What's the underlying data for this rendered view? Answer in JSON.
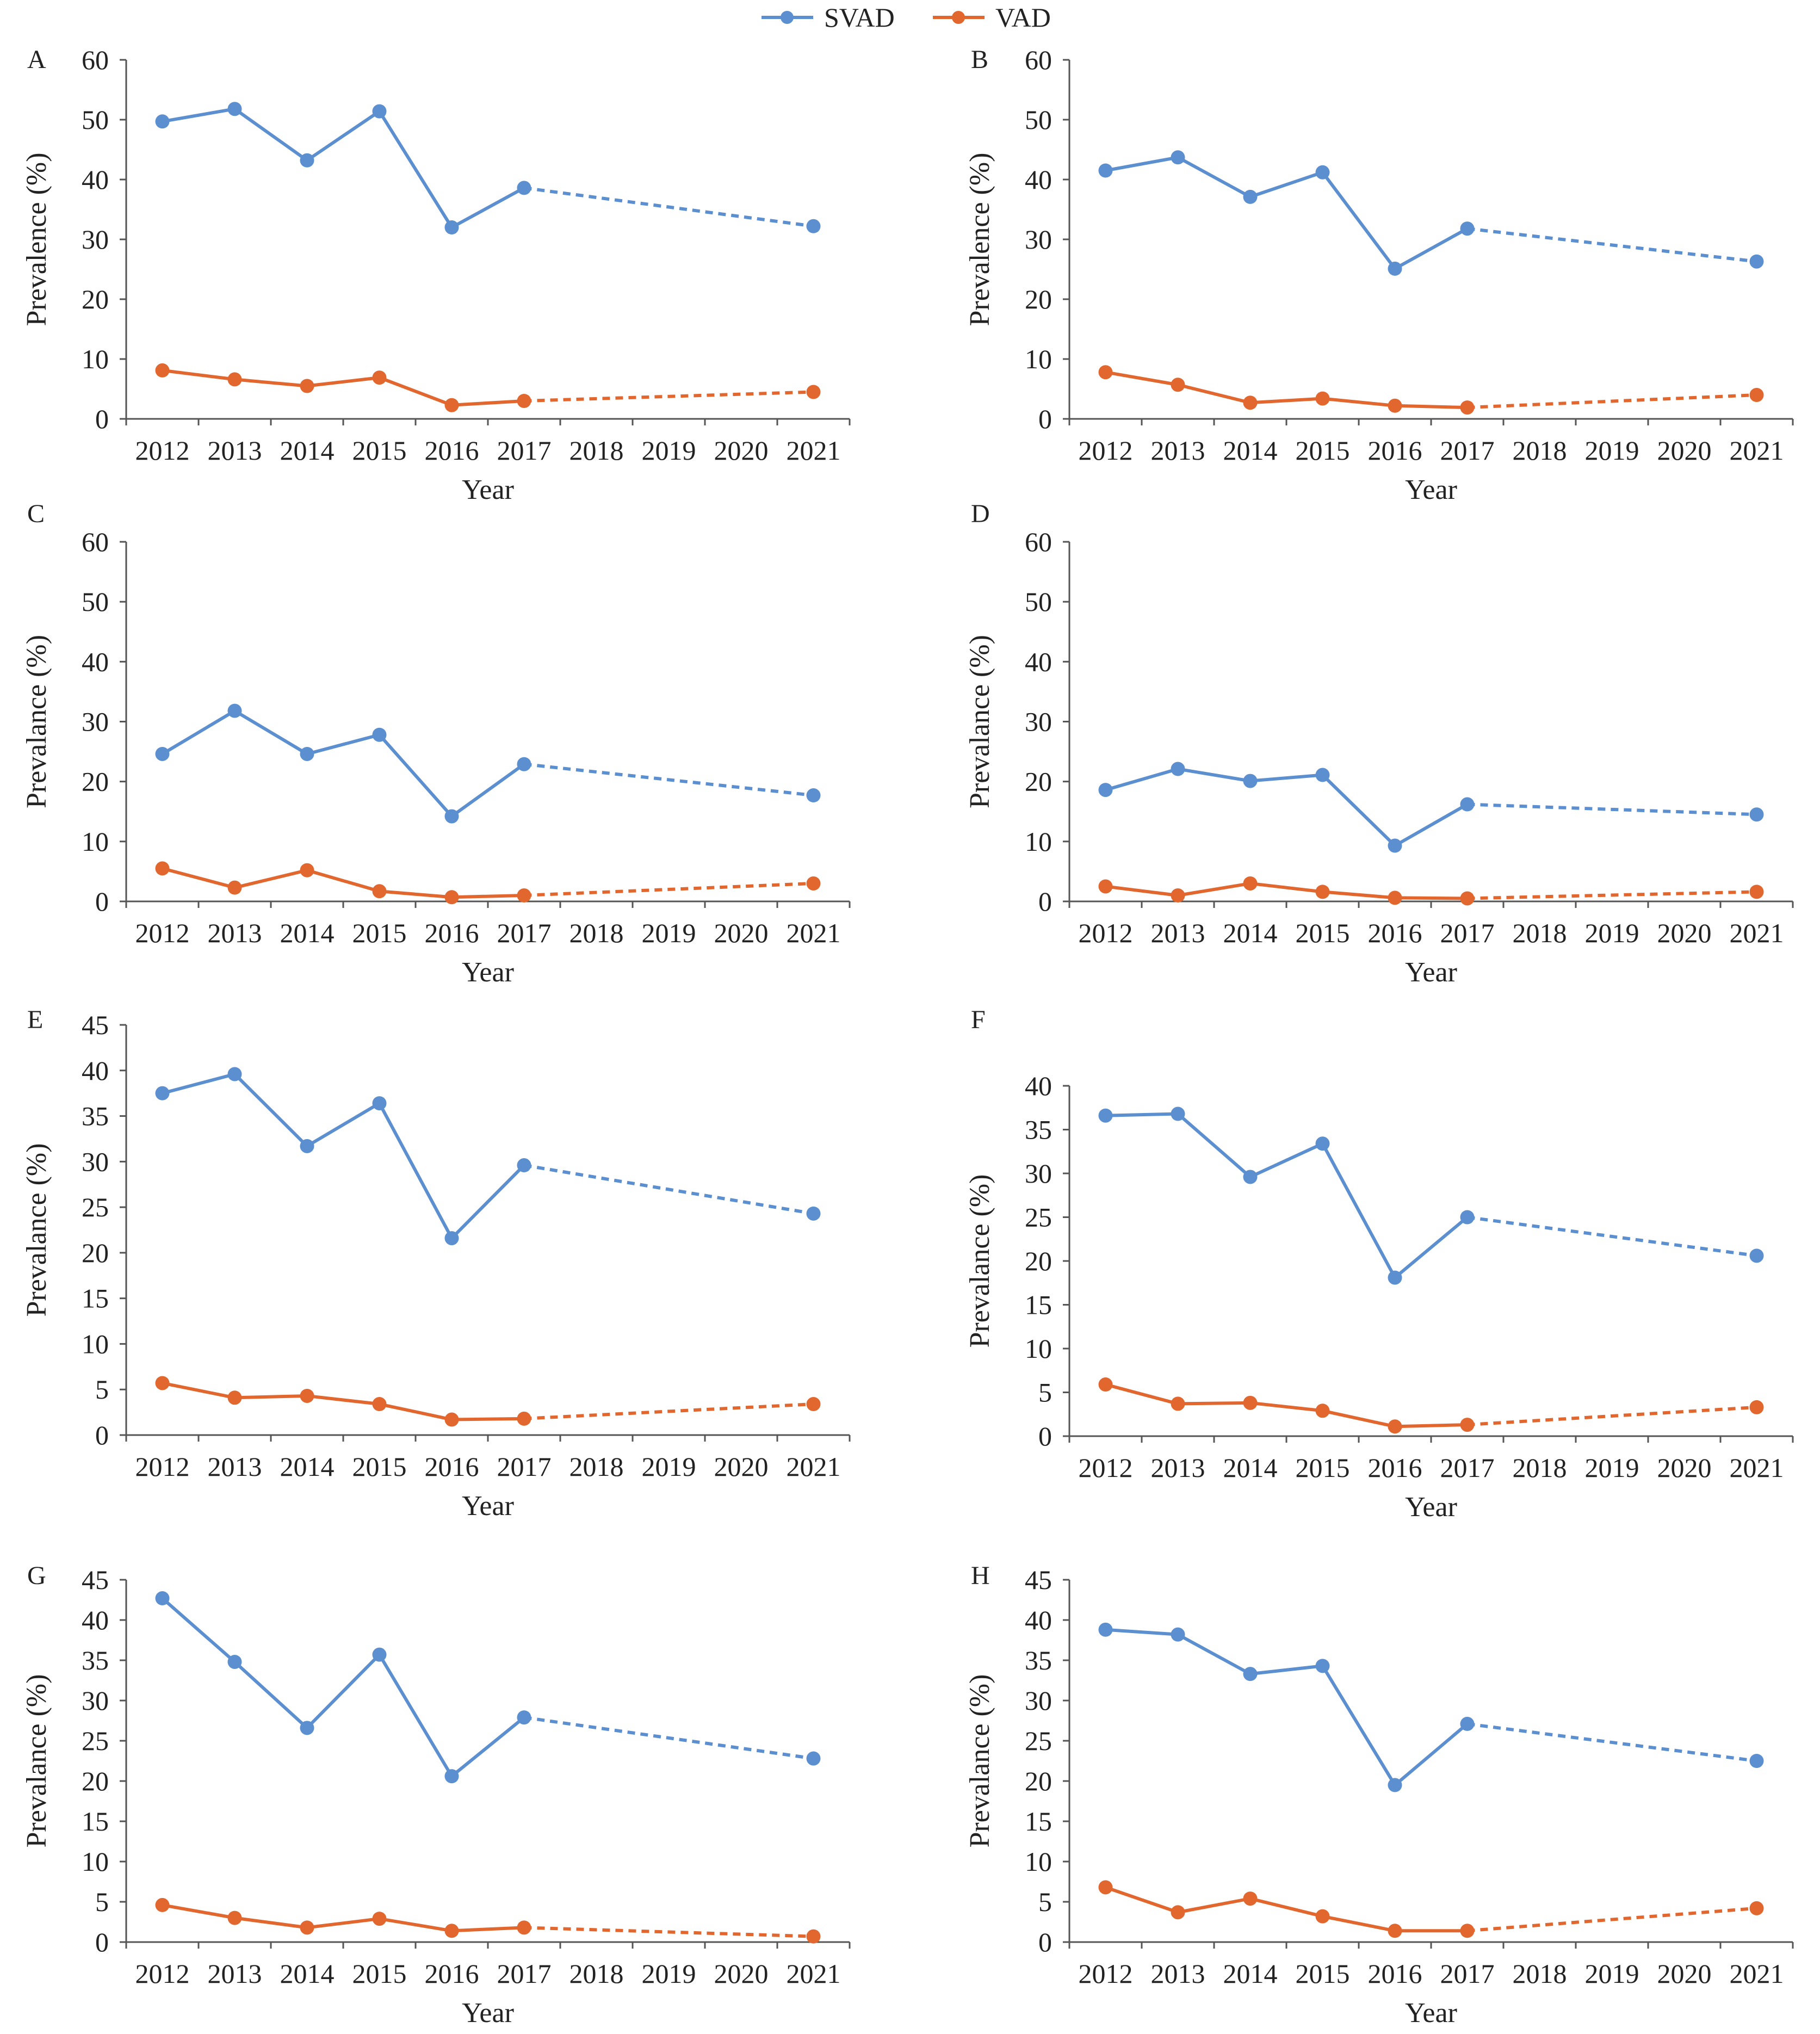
{
  "colors": {
    "SVAD": "#5b8fd0",
    "VAD": "#e2672f"
  },
  "legend": [
    {
      "name": "SVAD",
      "color": "#5b8fd0"
    },
    {
      "name": "VAD",
      "color": "#e2672f"
    }
  ],
  "chart_data": [
    {
      "panel": "A",
      "type": "line",
      "xlabel": "Year",
      "ylabel": "Prevalence (%)",
      "categories": [
        "2012",
        "2013",
        "2014",
        "2015",
        "2016",
        "2017",
        "2018",
        "2019",
        "2020",
        "2021"
      ],
      "ylim": [
        0,
        60
      ],
      "ystep": 10,
      "grid": false,
      "series": [
        {
          "name": "SVAD",
          "x": [
            "2012",
            "2013",
            "2014",
            "2015",
            "2016",
            "2017",
            "2021"
          ],
          "values": [
            49.7,
            51.8,
            43.2,
            51.4,
            32.0,
            38.6,
            32.2
          ],
          "dashed_from": "2017"
        },
        {
          "name": "VAD",
          "x": [
            "2012",
            "2013",
            "2014",
            "2015",
            "2016",
            "2017",
            "2021"
          ],
          "values": [
            8.1,
            6.6,
            5.5,
            6.9,
            2.3,
            3.0,
            4.5
          ],
          "dashed_from": "2017"
        }
      ]
    },
    {
      "panel": "B",
      "type": "line",
      "xlabel": "Year",
      "ylabel": "Prevalence (%)",
      "categories": [
        "2012",
        "2013",
        "2014",
        "2015",
        "2016",
        "2017",
        "2018",
        "2019",
        "2020",
        "2021"
      ],
      "ylim": [
        0,
        60
      ],
      "ystep": 10,
      "grid": false,
      "series": [
        {
          "name": "SVAD",
          "x": [
            "2012",
            "2013",
            "2014",
            "2015",
            "2016",
            "2017",
            "2021"
          ],
          "values": [
            41.5,
            43.7,
            37.1,
            41.2,
            25.1,
            31.8,
            26.3
          ],
          "dashed_from": "2017"
        },
        {
          "name": "VAD",
          "x": [
            "2012",
            "2013",
            "2014",
            "2015",
            "2016",
            "2017",
            "2021"
          ],
          "values": [
            7.8,
            5.7,
            2.7,
            3.4,
            2.2,
            1.9,
            4.0
          ],
          "dashed_from": "2017"
        }
      ]
    },
    {
      "panel": "C",
      "type": "line",
      "xlabel": "Year",
      "ylabel": "Prevalance (%)",
      "categories": [
        "2012",
        "2013",
        "2014",
        "2015",
        "2016",
        "2017",
        "2018",
        "2019",
        "2020",
        "2021"
      ],
      "ylim": [
        0,
        60
      ],
      "ystep": 10,
      "grid": false,
      "series": [
        {
          "name": "SVAD",
          "x": [
            "2012",
            "2013",
            "2014",
            "2015",
            "2016",
            "2017",
            "2021"
          ],
          "values": [
            24.6,
            31.8,
            24.6,
            27.8,
            14.2,
            22.9,
            17.7
          ],
          "dashed_from": "2017"
        },
        {
          "name": "VAD",
          "x": [
            "2012",
            "2013",
            "2014",
            "2015",
            "2016",
            "2017",
            "2021"
          ],
          "values": [
            5.5,
            2.3,
            5.2,
            1.7,
            0.7,
            1.0,
            3.0
          ],
          "dashed_from": "2017"
        }
      ]
    },
    {
      "panel": "D",
      "type": "line",
      "xlabel": "Year",
      "ylabel": "Prevalance (%)",
      "categories": [
        "2012",
        "2013",
        "2014",
        "2015",
        "2016",
        "2017",
        "2018",
        "2019",
        "2020",
        "2021"
      ],
      "ylim": [
        0,
        60
      ],
      "ystep": 10,
      "grid": false,
      "series": [
        {
          "name": "SVAD",
          "x": [
            "2012",
            "2013",
            "2014",
            "2015",
            "2016",
            "2017",
            "2021"
          ],
          "values": [
            18.6,
            22.1,
            20.1,
            21.1,
            9.3,
            16.2,
            14.5
          ],
          "dashed_from": "2017"
        },
        {
          "name": "VAD",
          "x": [
            "2012",
            "2013",
            "2014",
            "2015",
            "2016",
            "2017",
            "2021"
          ],
          "values": [
            2.5,
            1.0,
            3.0,
            1.6,
            0.6,
            0.5,
            1.6
          ],
          "dashed_from": "2017"
        }
      ]
    },
    {
      "panel": "E",
      "type": "line",
      "xlabel": "Year",
      "ylabel": "Prevalance (%)",
      "categories": [
        "2012",
        "2013",
        "2014",
        "2015",
        "2016",
        "2017",
        "2018",
        "2019",
        "2020",
        "2021"
      ],
      "ylim": [
        0,
        45
      ],
      "ystep": 5,
      "grid": false,
      "series": [
        {
          "name": "SVAD",
          "x": [
            "2012",
            "2013",
            "2014",
            "2015",
            "2016",
            "2017",
            "2021"
          ],
          "values": [
            37.5,
            39.6,
            31.7,
            36.4,
            21.6,
            29.6,
            24.3
          ],
          "dashed_from": "2017"
        },
        {
          "name": "VAD",
          "x": [
            "2012",
            "2013",
            "2014",
            "2015",
            "2016",
            "2017",
            "2021"
          ],
          "values": [
            5.7,
            4.1,
            4.3,
            3.4,
            1.7,
            1.8,
            3.4
          ],
          "dashed_from": "2017"
        }
      ]
    },
    {
      "panel": "F",
      "type": "line",
      "xlabel": "Year",
      "ylabel": "Prevalance (%)",
      "categories": [
        "2012",
        "2013",
        "2014",
        "2015",
        "2016",
        "2017",
        "2018",
        "2019",
        "2020",
        "2021"
      ],
      "ylim": [
        0,
        40
      ],
      "ystep": 5,
      "grid": false,
      "series": [
        {
          "name": "SVAD",
          "x": [
            "2012",
            "2013",
            "2014",
            "2015",
            "2016",
            "2017",
            "2021"
          ],
          "values": [
            36.6,
            36.8,
            29.6,
            33.4,
            18.1,
            25.0,
            20.6
          ],
          "dashed_from": "2017"
        },
        {
          "name": "VAD",
          "x": [
            "2012",
            "2013",
            "2014",
            "2015",
            "2016",
            "2017",
            "2021"
          ],
          "values": [
            5.9,
            3.7,
            3.8,
            2.9,
            1.1,
            1.3,
            3.3
          ],
          "dashed_from": "2017"
        }
      ]
    },
    {
      "panel": "G",
      "type": "line",
      "xlabel": "Year",
      "ylabel": "Prevalance (%)",
      "categories": [
        "2012",
        "2013",
        "2014",
        "2015",
        "2016",
        "2017",
        "2018",
        "2019",
        "2020",
        "2021"
      ],
      "ylim": [
        0,
        45
      ],
      "ystep": 5,
      "grid": false,
      "series": [
        {
          "name": "SVAD",
          "x": [
            "2012",
            "2013",
            "2014",
            "2015",
            "2016",
            "2017",
            "2021"
          ],
          "values": [
            42.7,
            34.8,
            26.6,
            35.7,
            20.6,
            27.9,
            22.8
          ],
          "dashed_from": "2017"
        },
        {
          "name": "VAD",
          "x": [
            "2012",
            "2013",
            "2014",
            "2015",
            "2016",
            "2017",
            "2021"
          ],
          "values": [
            4.6,
            3.0,
            1.8,
            2.9,
            1.4,
            1.8,
            0.7
          ],
          "dashed_from": "2017"
        }
      ]
    },
    {
      "panel": "H",
      "type": "line",
      "xlabel": "Year",
      "ylabel": "Prevalance (%)",
      "categories": [
        "2012",
        "2013",
        "2014",
        "2015",
        "2016",
        "2017",
        "2018",
        "2019",
        "2020",
        "2021"
      ],
      "ylim": [
        0,
        45
      ],
      "ystep": 5,
      "grid": false,
      "series": [
        {
          "name": "SVAD",
          "x": [
            "2012",
            "2013",
            "2014",
            "2015",
            "2016",
            "2017",
            "2021"
          ],
          "values": [
            38.8,
            38.2,
            33.3,
            34.3,
            19.5,
            27.1,
            22.5
          ],
          "dashed_from": "2017"
        },
        {
          "name": "VAD",
          "x": [
            "2012",
            "2013",
            "2014",
            "2015",
            "2016",
            "2017",
            "2021"
          ],
          "values": [
            6.8,
            3.7,
            5.4,
            3.2,
            1.4,
            1.4,
            4.2
          ],
          "dashed_from": "2017"
        }
      ]
    }
  ]
}
